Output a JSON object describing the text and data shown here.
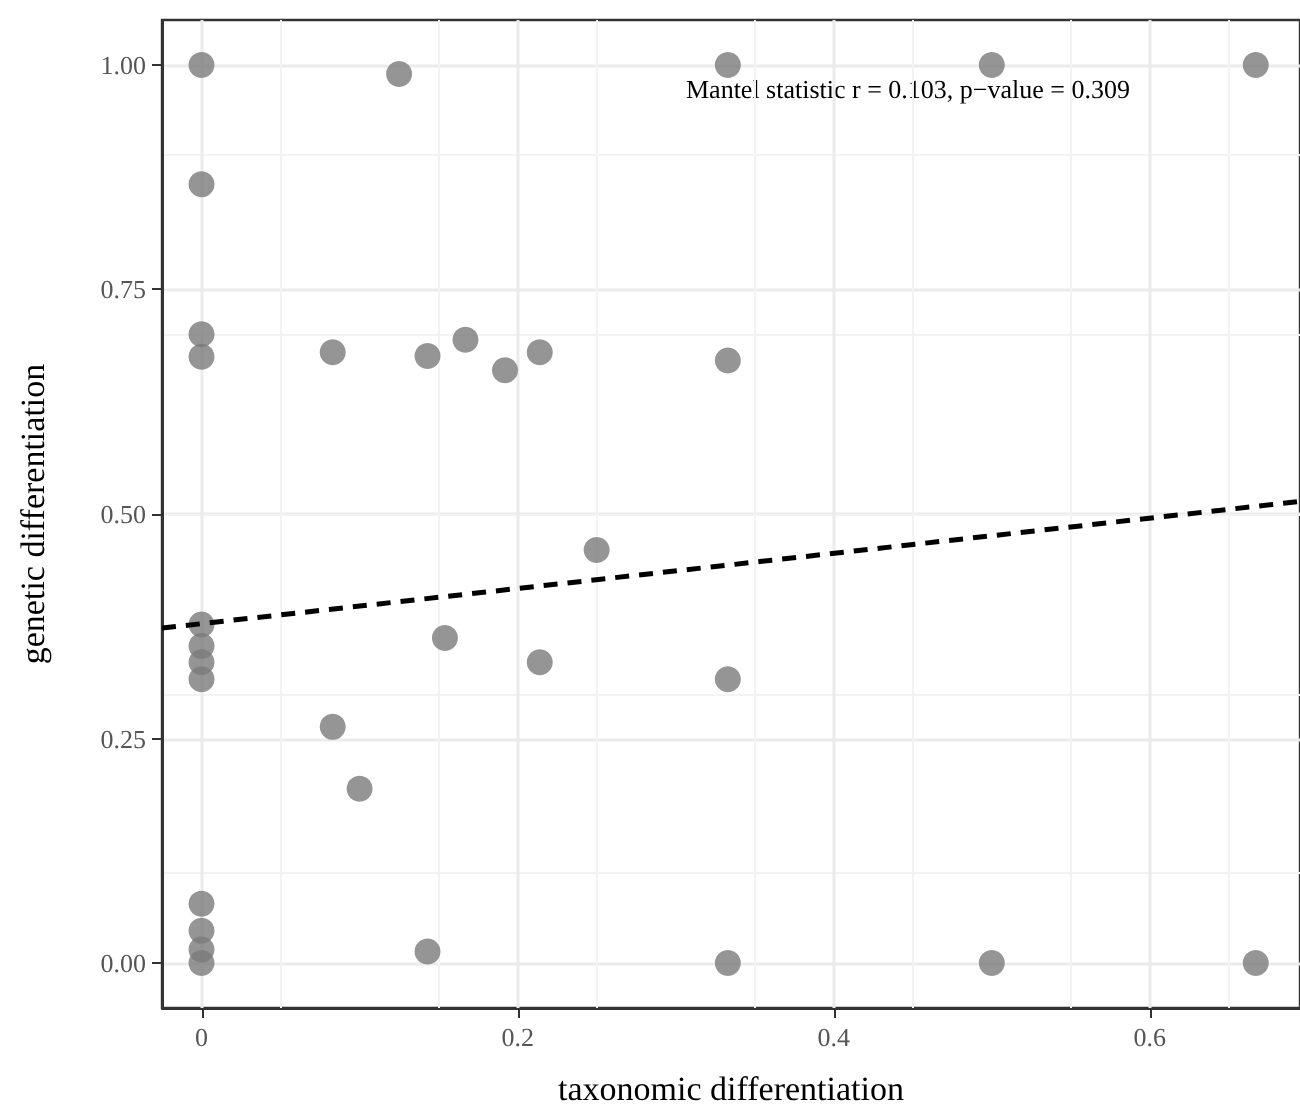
{
  "chart_data": {
    "type": "scatter",
    "xlabel": "taxonomic differentiation",
    "ylabel": "genetic differentiation",
    "annotations": [
      "Mantel statistic r = 0.103, p−value = 0.309"
    ],
    "xlim": [
      -0.025,
      0.695
    ],
    "ylim": [
      -0.05,
      1.05
    ],
    "xticks": [
      0,
      0.2,
      0.4,
      0.6
    ],
    "yticks": [
      {
        "value": 0,
        "label": "0.00"
      },
      {
        "value": 0.25,
        "label": "0.25"
      },
      {
        "value": 0.5,
        "label": "0.50"
      },
      {
        "value": 0.75,
        "label": "0.75"
      },
      {
        "value": 1,
        "label": "1.00"
      }
    ],
    "grid": true,
    "marker": "circle",
    "series": [
      {
        "type": "scatter",
        "color": "#7a7a7a",
        "x": [
          0,
          0,
          0,
          0,
          0,
          0,
          0,
          0,
          0,
          0,
          0,
          0,
          0.125,
          0.083,
          0.143,
          0.167,
          0.192,
          0.214,
          0.333,
          0.333,
          0.5,
          0.667,
          0.083,
          0.1,
          0.143,
          0.154,
          0.214,
          0.25,
          0.333,
          0.333,
          0.5,
          0.667
        ],
        "values": [
          1,
          0.867,
          0.7,
          0.675,
          0.377,
          0.353,
          0.335,
          0.316,
          0.066,
          0.036,
          0.015,
          0,
          0.99,
          0.68,
          0.676,
          0.694,
          0.66,
          0.68,
          0.671,
          1,
          1,
          1,
          0.263,
          0.194,
          0.013,
          0.362,
          0.335,
          0.46,
          0.316,
          0,
          0,
          0
        ]
      },
      {
        "type": "line",
        "color": "#000000",
        "line_style": "dashed",
        "marker": "none",
        "x": [
          -0.025,
          0.695
        ],
        "values": [
          0.373,
          0.514
        ]
      }
    ]
  }
}
